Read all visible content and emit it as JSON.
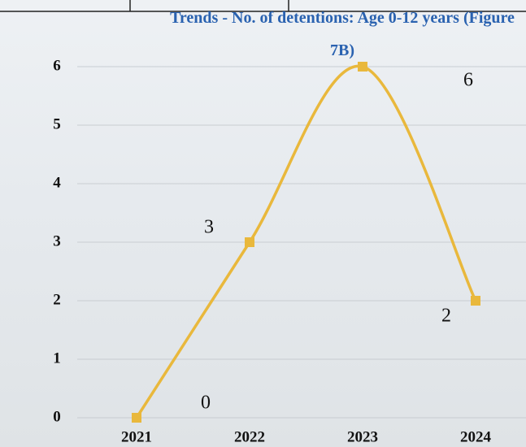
{
  "chart_data": {
    "type": "line",
    "title": "Trends - No. of detentions: Age 0-12 years (Figure 7B)",
    "categories": [
      "2021",
      "2022",
      "2023",
      "2024"
    ],
    "values": [
      0,
      3,
      6,
      2
    ],
    "value_labels": [
      "0",
      "3",
      "6",
      "2"
    ],
    "color": "#e9b83c",
    "smooth": true,
    "ylim": [
      0,
      6
    ],
    "yticks": [
      0,
      1,
      2,
      3,
      4,
      5,
      6
    ],
    "grid": true
  }
}
